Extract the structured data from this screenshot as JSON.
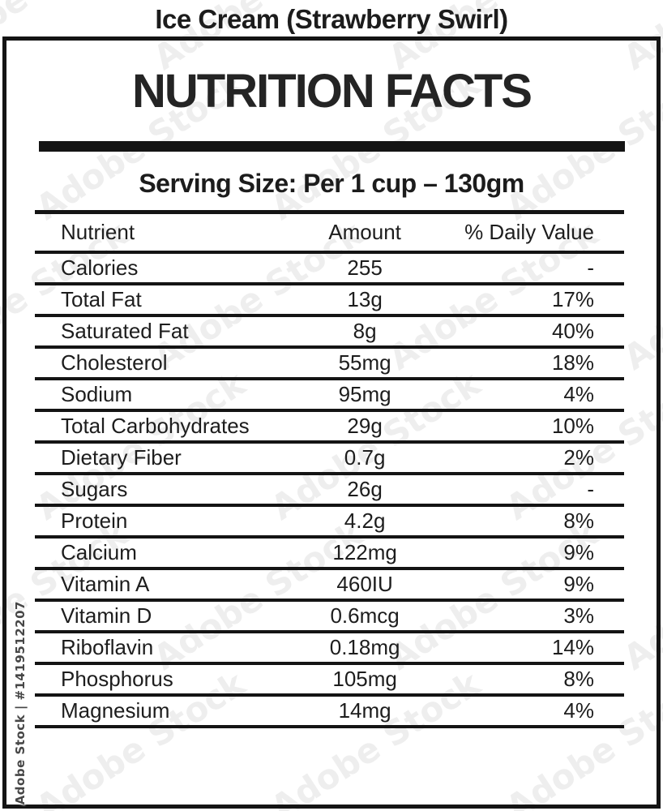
{
  "product_title": "Ice Cream (Strawberry Swirl)",
  "label": {
    "heading": "NUTRITION FACTS",
    "serving_size": "Serving Size: Per 1 cup – 130gm"
  },
  "table": {
    "headers": [
      "Nutrient",
      "Amount",
      "% Daily Value"
    ],
    "rows": [
      {
        "nutrient": "Calories",
        "amount": "255",
        "daily_value": "-"
      },
      {
        "nutrient": "Total Fat",
        "amount": "13g",
        "daily_value": "17%"
      },
      {
        "nutrient": "Saturated Fat",
        "amount": "8g",
        "daily_value": "40%"
      },
      {
        "nutrient": "Cholesterol",
        "amount": "55mg",
        "daily_value": "18%"
      },
      {
        "nutrient": "Sodium",
        "amount": "95mg",
        "daily_value": "4%"
      },
      {
        "nutrient": "Total Carbohydrates",
        "amount": "29g",
        "daily_value": "10%"
      },
      {
        "nutrient": "Dietary Fiber",
        "amount": "0.7g",
        "daily_value": "2%"
      },
      {
        "nutrient": "Sugars",
        "amount": "26g",
        "daily_value": "-"
      },
      {
        "nutrient": "Protein",
        "amount": "4.2g",
        "daily_value": "8%"
      },
      {
        "nutrient": "Calcium",
        "amount": "122mg",
        "daily_value": "9%"
      },
      {
        "nutrient": "Vitamin A",
        "amount": "460IU",
        "daily_value": "9%"
      },
      {
        "nutrient": "Vitamin D",
        "amount": "0.6mcg",
        "daily_value": "3%"
      },
      {
        "nutrient": "Riboflavin",
        "amount": "0.18mg",
        "daily_value": "14%"
      },
      {
        "nutrient": "Phosphorus",
        "amount": "105mg",
        "daily_value": "8%"
      },
      {
        "nutrient": "Magnesium",
        "amount": "14mg",
        "daily_value": "4%"
      }
    ]
  },
  "watermark": {
    "stock_id_label": "Adobe Stock | #1419512207",
    "tile_text": "Adobe Stock"
  },
  "colors": {
    "text": "#1d1d1d",
    "line": "#141414",
    "background": "#ffffff",
    "watermark_gray": "#474747"
  }
}
